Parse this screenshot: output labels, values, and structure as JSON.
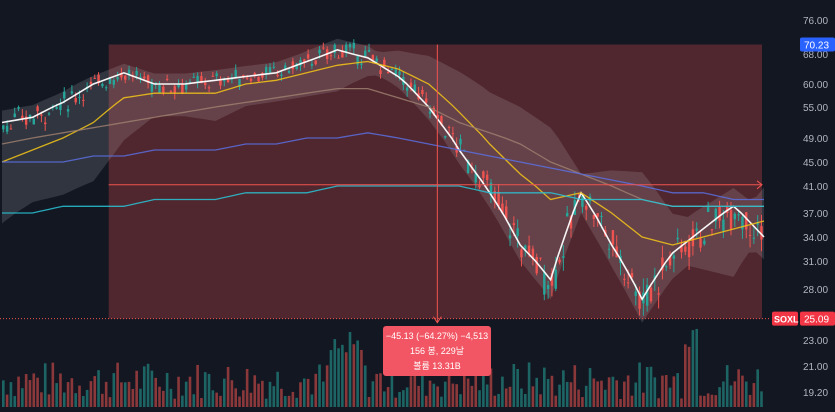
{
  "chart_data": {
    "type": "line",
    "title": "",
    "xlabel": "",
    "ylabel": "",
    "symbol": "SOXL",
    "last_price": "25.09",
    "range_top_price": "70.23",
    "ylim": [
      18.5,
      78
    ],
    "y_ticks": [
      "76.00",
      "68.00",
      "60.00",
      "55.00",
      "49.00",
      "45.00",
      "41.00",
      "37.00",
      "34.00",
      "31.00",
      "28.00",
      "23.00",
      "21.00",
      "19.20"
    ],
    "measure": {
      "change_text": "−45.13 (−64.27%) −4,513",
      "bars_text": "156 봉, 229날",
      "volume_text": "볼륨 13.31B",
      "start_price": 70.23,
      "end_price": 25.09,
      "start_index": 28,
      "end_index": 189,
      "level_41": 41.2
    },
    "x": [
      0,
      8,
      16,
      24,
      32,
      40,
      48,
      56,
      64,
      72,
      80,
      88,
      96,
      104,
      112,
      120,
      128,
      136,
      144,
      152,
      160,
      168,
      176,
      184,
      192,
      200
    ],
    "series": [
      {
        "values": [
          52,
          53,
          56,
          60,
          63,
          60,
          60,
          61,
          62,
          63,
          66,
          69,
          67,
          62,
          55,
          47,
          40,
          33,
          29,
          40,
          33,
          27,
          32,
          35,
          38,
          34
        ]
      },
      {
        "values": [
          45,
          47,
          49,
          52,
          57,
          58,
          58,
          58,
          60,
          61,
          63,
          65,
          66,
          64,
          60,
          54,
          48,
          43,
          39,
          40,
          37,
          34,
          33,
          34,
          35,
          36
        ]
      },
      {
        "values": [
          48,
          49,
          50,
          51,
          52,
          53,
          54,
          55,
          56,
          57,
          58,
          59,
          59,
          57,
          55,
          52,
          50,
          48,
          45,
          43,
          41,
          39,
          38,
          38,
          38,
          38
        ]
      },
      {
        "values": [
          45,
          45,
          45,
          46,
          46,
          47,
          47,
          47,
          48,
          48,
          49,
          49,
          50,
          49,
          48,
          47,
          46,
          45,
          44,
          43,
          42,
          41,
          40,
          40,
          39,
          39
        ]
      },
      {
        "values": [
          37,
          37,
          38,
          38,
          38,
          39,
          39,
          39,
          40,
          40,
          40,
          41,
          41,
          41,
          41,
          41,
          40,
          40,
          40,
          39,
          39,
          39,
          38,
          38,
          38,
          38
        ]
      }
    ],
    "colors": {
      "background": "#131722",
      "up": "#26a69a",
      "down": "#ef5350",
      "measure_fill": "#ef5350",
      "price_line": "#ffffff",
      "ma_fast": "#f5c518",
      "ma_mid": "#9c7e6e",
      "ma_slow": "#5b6fe0",
      "ma_long": "#29c4d6",
      "bands": "#d1d4dc",
      "symbol_tag": "#f23645",
      "range_tag": "#2962ff"
    }
  }
}
